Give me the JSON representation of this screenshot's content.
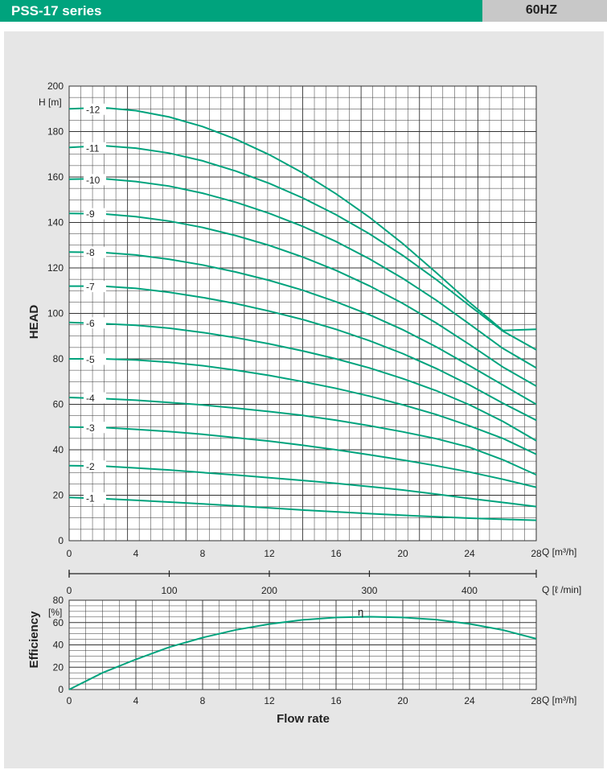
{
  "header": {
    "series_title": "PSS-17 series",
    "frequency": "60HZ"
  },
  "colors": {
    "accent": "#00a37d",
    "curve": "#00a37d",
    "grid": "#333333",
    "panel": "#e6e6e6"
  },
  "chart_data": [
    {
      "type": "line",
      "ylabel": "HEAD",
      "yunit": "H [m]",
      "xunit": "Q [m³/h]",
      "xlim": [
        0,
        28
      ],
      "ylim": [
        0,
        200
      ],
      "xticks": [
        0,
        4,
        8,
        12,
        16,
        20,
        24,
        28
      ],
      "yticks": [
        0,
        20,
        40,
        60,
        80,
        100,
        120,
        140,
        160,
        180,
        200
      ],
      "grid": true,
      "x": [
        0,
        2,
        4,
        6,
        8,
        10,
        12,
        14,
        16,
        18,
        20,
        22,
        24,
        26,
        28
      ],
      "series": [
        {
          "name": "-1",
          "values": [
            19,
            18.5,
            17.8,
            17,
            16.2,
            15.3,
            14.4,
            13.5,
            12.7,
            11.9,
            11.2,
            10.5,
            9.9,
            9.4,
            9
          ]
        },
        {
          "name": "-2",
          "values": [
            33,
            32.8,
            32,
            31.1,
            30,
            28.9,
            27.7,
            26.5,
            25.2,
            23.8,
            22.3,
            20.5,
            18.6,
            16.8,
            15
          ]
        },
        {
          "name": "-3",
          "values": [
            50,
            49.8,
            49,
            48,
            46.8,
            45.3,
            43.8,
            42,
            40,
            37.8,
            35.5,
            33,
            30.2,
            27,
            23.5
          ]
        },
        {
          "name": "-4",
          "values": [
            63,
            62.5,
            61.8,
            60.8,
            59.7,
            58.3,
            56.8,
            55.1,
            53,
            50.6,
            47.9,
            44.9,
            41.1,
            35.6,
            29
          ]
        },
        {
          "name": "-5",
          "values": [
            80,
            80,
            79.5,
            78.5,
            77,
            75,
            72.7,
            70,
            67,
            63.6,
            59.8,
            55.5,
            50.5,
            45,
            38
          ]
        },
        {
          "name": "-6",
          "values": [
            96,
            95.5,
            94.8,
            93.5,
            91.6,
            89.3,
            86.6,
            83.5,
            80,
            76,
            71.3,
            66,
            59.8,
            52.5,
            44
          ]
        },
        {
          "name": "-7",
          "values": [
            112,
            112,
            111,
            109.3,
            107,
            104.3,
            101,
            97.3,
            93,
            88,
            82.3,
            75.8,
            68.5,
            60.5,
            53
          ]
        },
        {
          "name": "-8",
          "values": [
            127,
            126.8,
            125.7,
            123.8,
            121.3,
            118.2,
            114.5,
            110.2,
            105.1,
            99.4,
            92.8,
            85.3,
            77,
            68.5,
            60
          ]
        },
        {
          "name": "-9",
          "values": [
            144,
            143.8,
            142.6,
            140.6,
            137.8,
            134.2,
            129.9,
            124.8,
            118.9,
            112.1,
            104.4,
            95.8,
            86.3,
            76.4,
            68
          ]
        },
        {
          "name": "-10",
          "values": [
            159,
            159.3,
            158,
            156,
            152.9,
            148.9,
            144,
            138.3,
            131.6,
            124,
            115.4,
            105.8,
            95.3,
            84.6,
            76
          ]
        },
        {
          "name": "-11",
          "values": [
            173,
            173.8,
            172.7,
            170.5,
            167.1,
            162.6,
            157.2,
            150.8,
            143.4,
            135,
            125.5,
            114.9,
            103.4,
            92.2,
            84
          ]
        },
        {
          "name": "-12",
          "values": [
            190,
            190.5,
            189.2,
            186.4,
            182.2,
            176.6,
            169.8,
            161.8,
            152.6,
            142.3,
            130.7,
            118,
            104.8,
            92.5,
            93
          ]
        }
      ]
    },
    {
      "type": "axis",
      "xunit": "Q [ℓ /min]",
      "xlim": [
        0,
        466.7
      ],
      "xticks": [
        0,
        100,
        200,
        300,
        400
      ]
    },
    {
      "type": "line",
      "ylabel": "Efficiency",
      "yunit": "[%]",
      "xlabel": "Flow rate",
      "xunit": "Q [m³/h]",
      "xlim": [
        0,
        28
      ],
      "ylim": [
        0,
        80
      ],
      "xticks": [
        0,
        4,
        8,
        12,
        16,
        20,
        24,
        28
      ],
      "yticks": [
        0,
        20,
        40,
        60,
        80
      ],
      "grid": true,
      "x": [
        0,
        2,
        4,
        6,
        8,
        10,
        12,
        14,
        16,
        18,
        20,
        22,
        24,
        26,
        28
      ],
      "series": [
        {
          "name": "η",
          "values": [
            0,
            15,
            27,
            38,
            46.5,
            53.5,
            58.7,
            62.4,
            64.6,
            65.2,
            64.6,
            62.6,
            58.8,
            53.3,
            45.5
          ]
        }
      ]
    }
  ]
}
